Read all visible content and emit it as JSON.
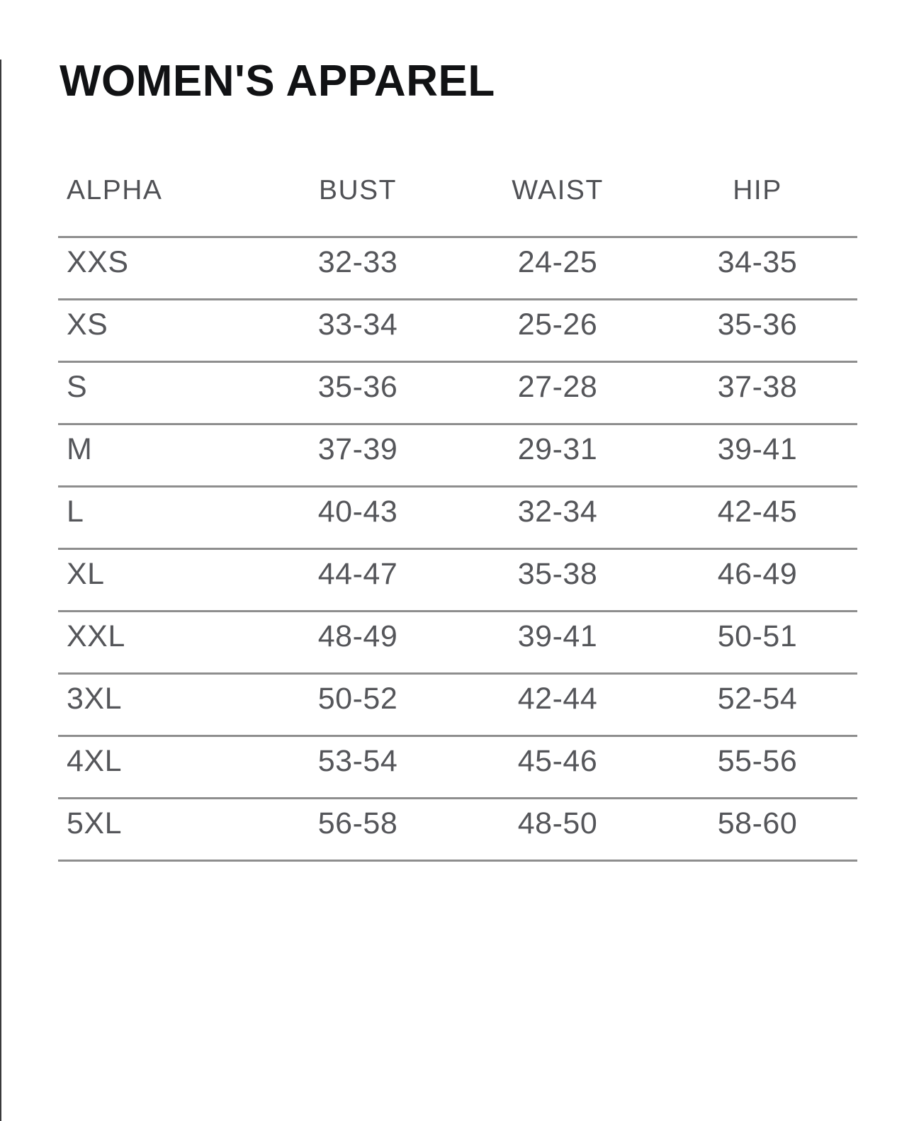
{
  "title": "WOMEN'S APPAREL",
  "table": {
    "columns": [
      "ALPHA",
      "BUST",
      "WAIST",
      "HIP"
    ],
    "rows": [
      [
        "XXS",
        "32-33",
        "24-25",
        "34-35"
      ],
      [
        "XS",
        "33-34",
        "25-26",
        "35-36"
      ],
      [
        "S",
        "35-36",
        "27-28",
        "37-38"
      ],
      [
        "M",
        "37-39",
        "29-31",
        "39-41"
      ],
      [
        "L",
        "40-43",
        "32-34",
        "42-45"
      ],
      [
        "XL",
        "44-47",
        "35-38",
        "46-49"
      ],
      [
        "XXL",
        "48-49",
        "39-41",
        "50-51"
      ],
      [
        "3XL",
        "50-52",
        "42-44",
        "52-54"
      ],
      [
        "4XL",
        "53-54",
        "45-46",
        "55-56"
      ],
      [
        "5XL",
        "56-58",
        "48-50",
        "58-60"
      ]
    ]
  },
  "colors": {
    "title_text": "#111214",
    "body_text": "#55565a",
    "header_text": "#505155",
    "divider_line": "#8e8e8e",
    "left_edge_border": "#3a3a3c",
    "background": "#ffffff"
  }
}
